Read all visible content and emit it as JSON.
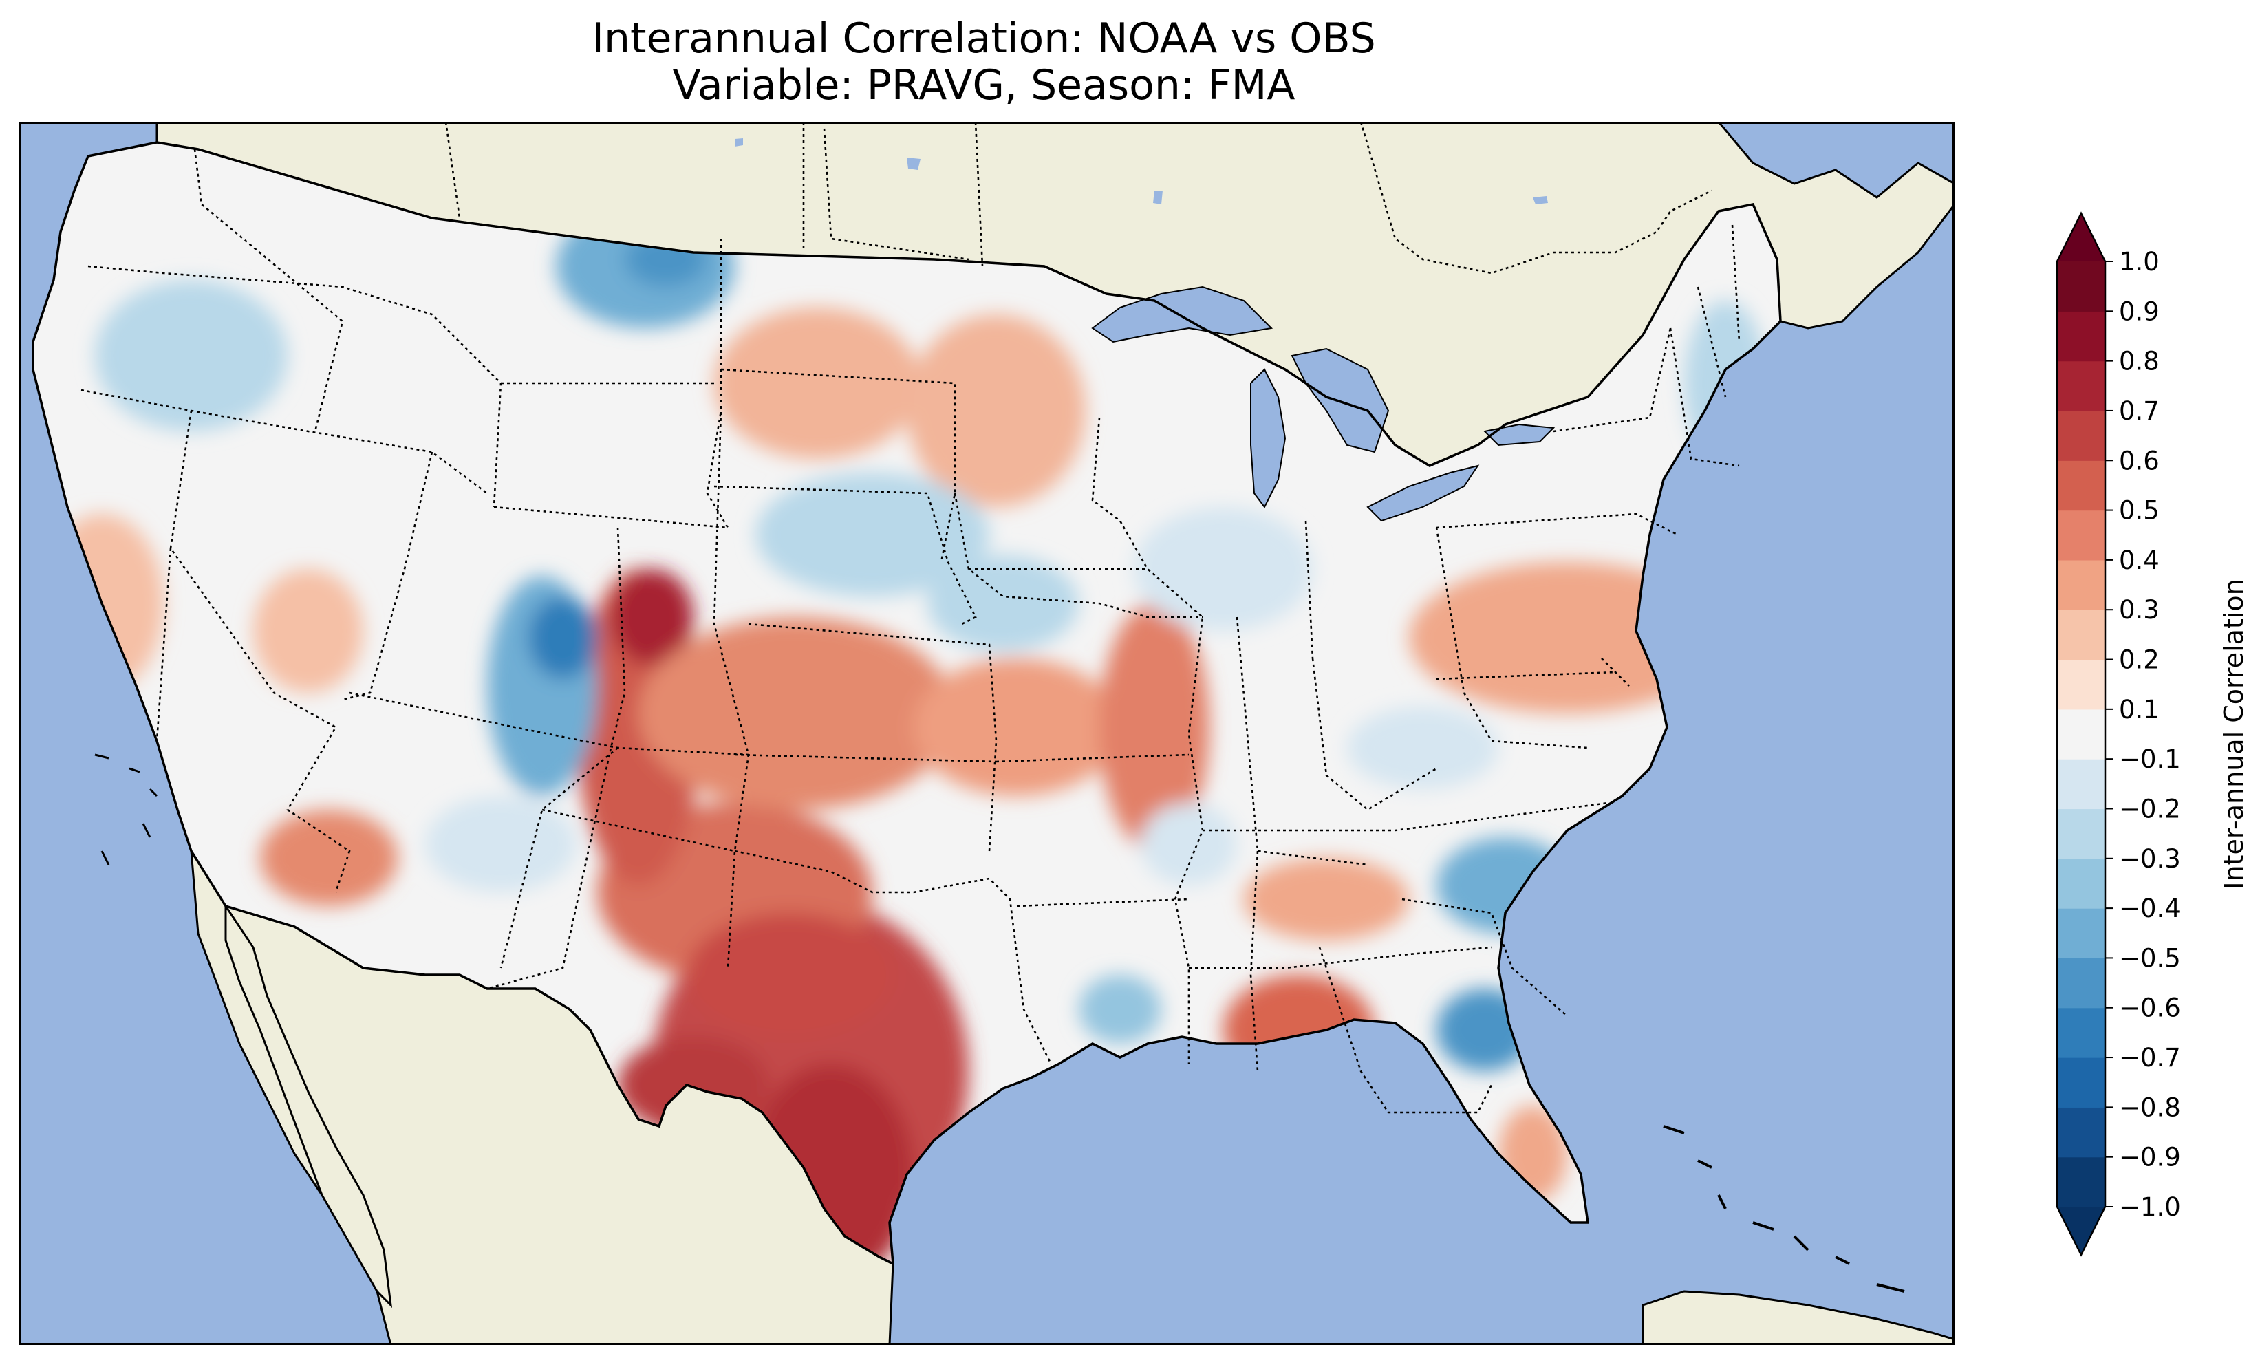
{
  "title": {
    "line1": "Interannual Correlation: NOAA vs OBS",
    "line2": "Variable: PRAVG, Season: FMA"
  },
  "colorbar": {
    "label": "Inter-annual Correlation",
    "levels": [
      -1.0,
      -0.9,
      -0.8,
      -0.7,
      -0.6,
      -0.5,
      -0.4,
      -0.3,
      -0.2,
      -0.1,
      0.1,
      0.2,
      0.3,
      0.4,
      0.5,
      0.6,
      0.7,
      0.8,
      0.9,
      1.0
    ],
    "tick_labels": [
      "−1.0",
      "−0.9",
      "−0.8",
      "−0.7",
      "−0.6",
      "−0.5",
      "−0.4",
      "−0.3",
      "−0.2",
      "−0.1",
      "0.1",
      "0.2",
      "0.3",
      "0.4",
      "0.5",
      "0.6",
      "0.7",
      "0.8",
      "0.9",
      "1.0"
    ],
    "colors": [
      "#0b3a6f",
      "#14508f",
      "#1d67a9",
      "#2f7db9",
      "#4c94c6",
      "#70aed4",
      "#94c5df",
      "#b8d8e9",
      "#d6e6f1",
      "#f4f4f4",
      "#fbe1d2",
      "#f6c4aa",
      "#f0a384",
      "#e5816a",
      "#d3604f",
      "#bf4240",
      "#a72433",
      "#8d1028",
      "#710820"
    ],
    "extend_min_color": "#083264",
    "extend_max_color": "#67001f"
  },
  "map": {
    "ocean_color": "#98b5e0",
    "land_color": "#efeedc",
    "lake_color": "#98b5e0"
  },
  "chart_data": {
    "type": "heatmap",
    "title": "Interannual Correlation: NOAA vs OBS — Variable: PRAVG, Season: FMA",
    "region": "Contiguous United States",
    "colorbar_label": "Inter-annual Correlation",
    "vmin": -1.0,
    "vmax": 1.0,
    "notable_regions": [
      {
        "area": "Texas",
        "correlation": 0.7
      },
      {
        "area": "Oklahoma",
        "correlation": 0.6
      },
      {
        "area": "Eastern Colorado / SE Wyoming",
        "correlation": 0.7
      },
      {
        "area": "Kansas",
        "correlation": 0.5
      },
      {
        "area": "Pennsylvania",
        "correlation": 0.5
      },
      {
        "area": "Northern Alabama",
        "correlation": 0.5
      },
      {
        "area": "Eastern North Carolina",
        "correlation": 0.5
      },
      {
        "area": "Northern California coast",
        "correlation": 0.3
      },
      {
        "area": "Northeastern Montana",
        "correlation": -0.6
      },
      {
        "area": "Western Wyoming / NE Utah",
        "correlation": -0.6
      },
      {
        "area": "Northern Florida / SE Georgia",
        "correlation": -0.6
      },
      {
        "area": "Nebraska / South Dakota",
        "correlation": -0.3
      },
      {
        "area": "Western North Carolina / Virginia",
        "correlation": -0.4
      },
      {
        "area": "Washington / Idaho",
        "correlation": -0.3
      }
    ]
  }
}
